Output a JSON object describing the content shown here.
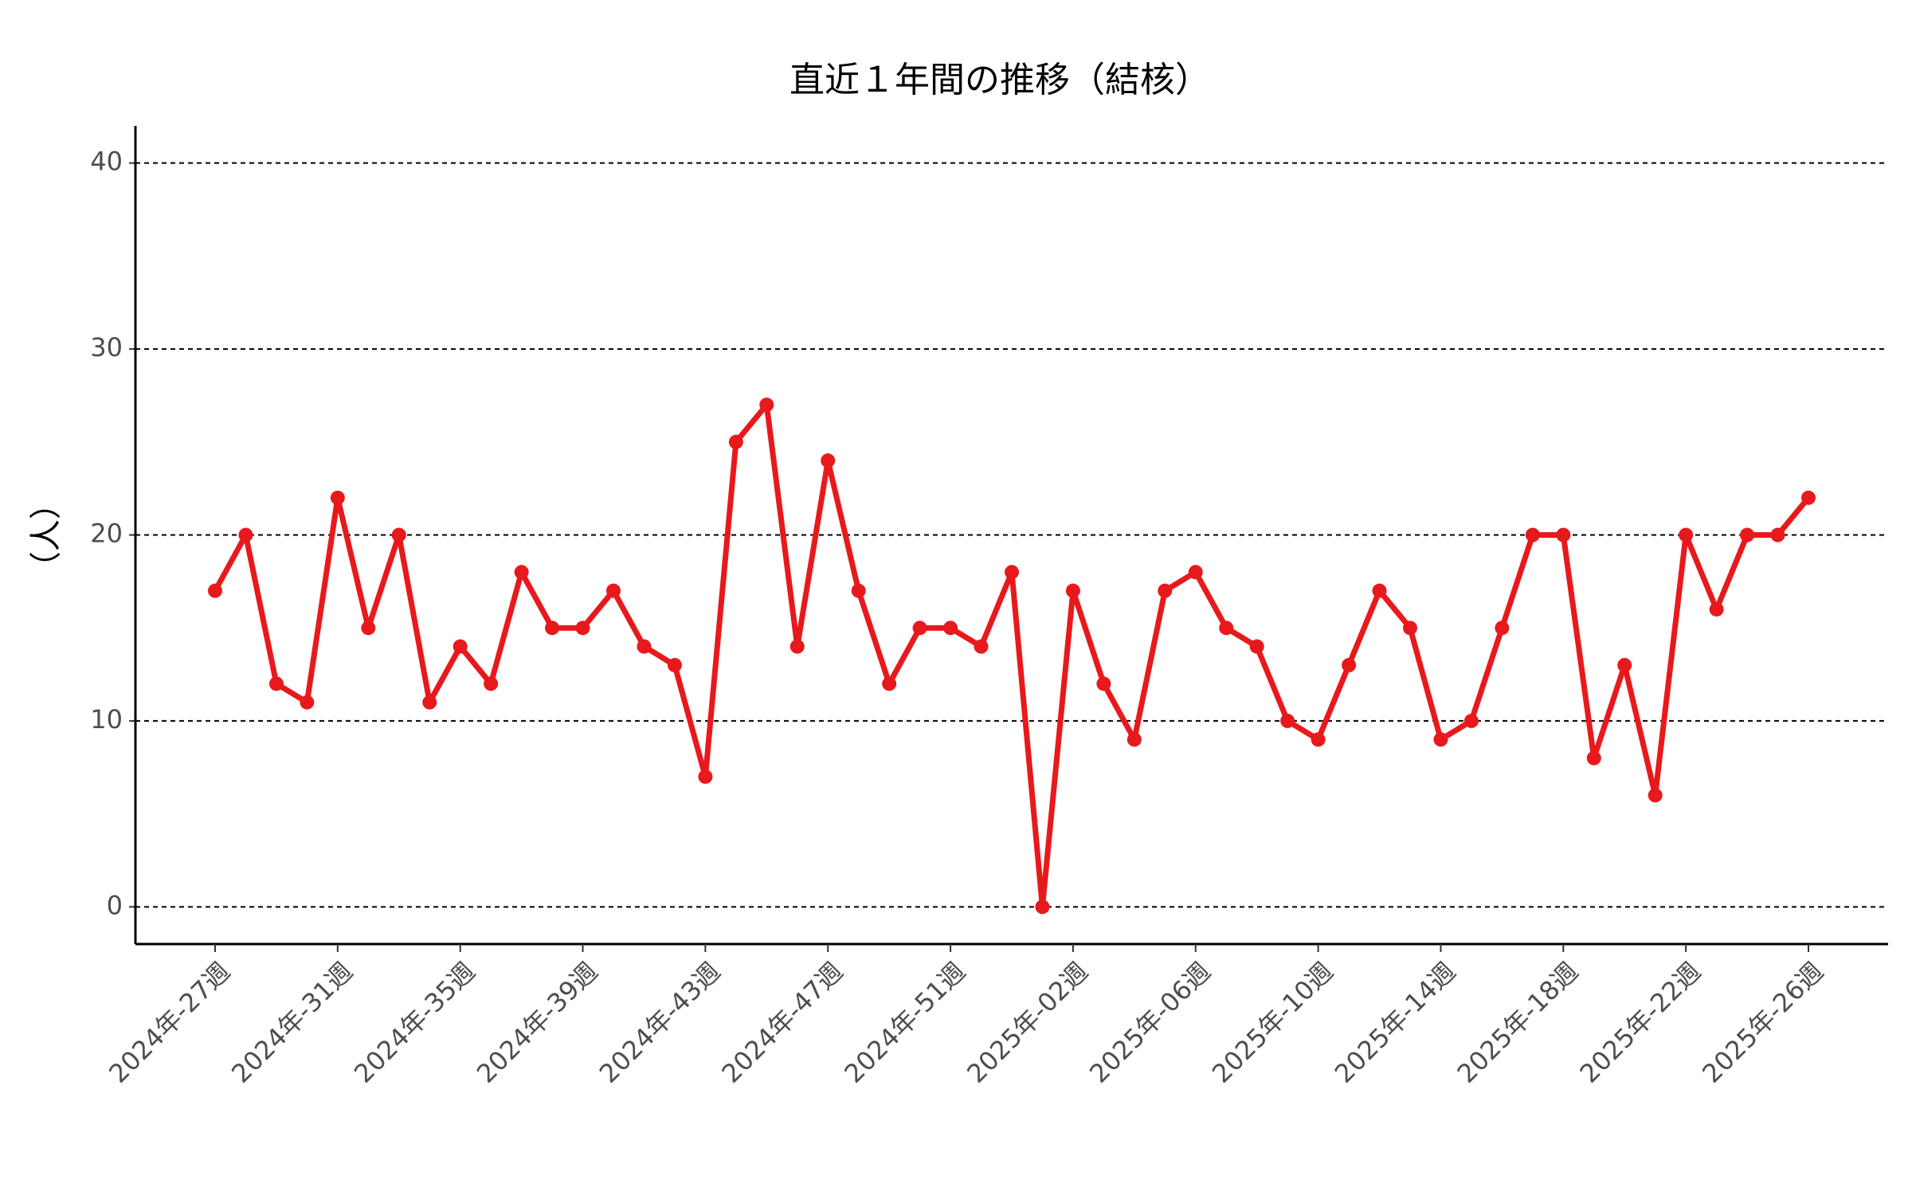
{
  "chart_data": {
    "type": "line",
    "title": "直近１年間の推移（結核）",
    "y_label": "（人）",
    "categories": [
      "2024年-27週",
      null,
      null,
      null,
      "2024年-31週",
      null,
      null,
      null,
      "2024年-35週",
      null,
      null,
      null,
      "2024年-39週",
      null,
      null,
      null,
      "2024年-43週",
      null,
      null,
      null,
      "2024年-47週",
      null,
      null,
      null,
      "2024年-51週",
      null,
      null,
      null,
      "2025年-02週",
      null,
      null,
      null,
      "2025年-06週",
      null,
      null,
      null,
      "2025年-10週",
      null,
      null,
      null,
      "2025年-14週",
      null,
      null,
      null,
      "2025年-18週",
      null,
      null,
      null,
      "2025年-22週",
      null,
      null,
      null,
      "2025年-26週"
    ],
    "values": [
      17,
      20,
      12,
      11,
      22,
      15,
      20,
      11,
      14,
      12,
      18,
      15,
      15,
      17,
      14,
      13,
      7,
      25,
      27,
      14,
      24,
      17,
      12,
      15,
      15,
      14,
      18,
      0,
      17,
      12,
      9,
      17,
      18,
      15,
      14,
      10,
      9,
      13,
      17,
      15,
      9,
      10,
      15,
      20,
      20,
      8,
      13,
      6,
      20,
      16,
      20,
      20,
      22
    ],
    "color": "#e8191c",
    "ylim": [
      -2,
      42
    ],
    "yticks": [
      0,
      10,
      20,
      30,
      40
    ],
    "grid": true
  }
}
